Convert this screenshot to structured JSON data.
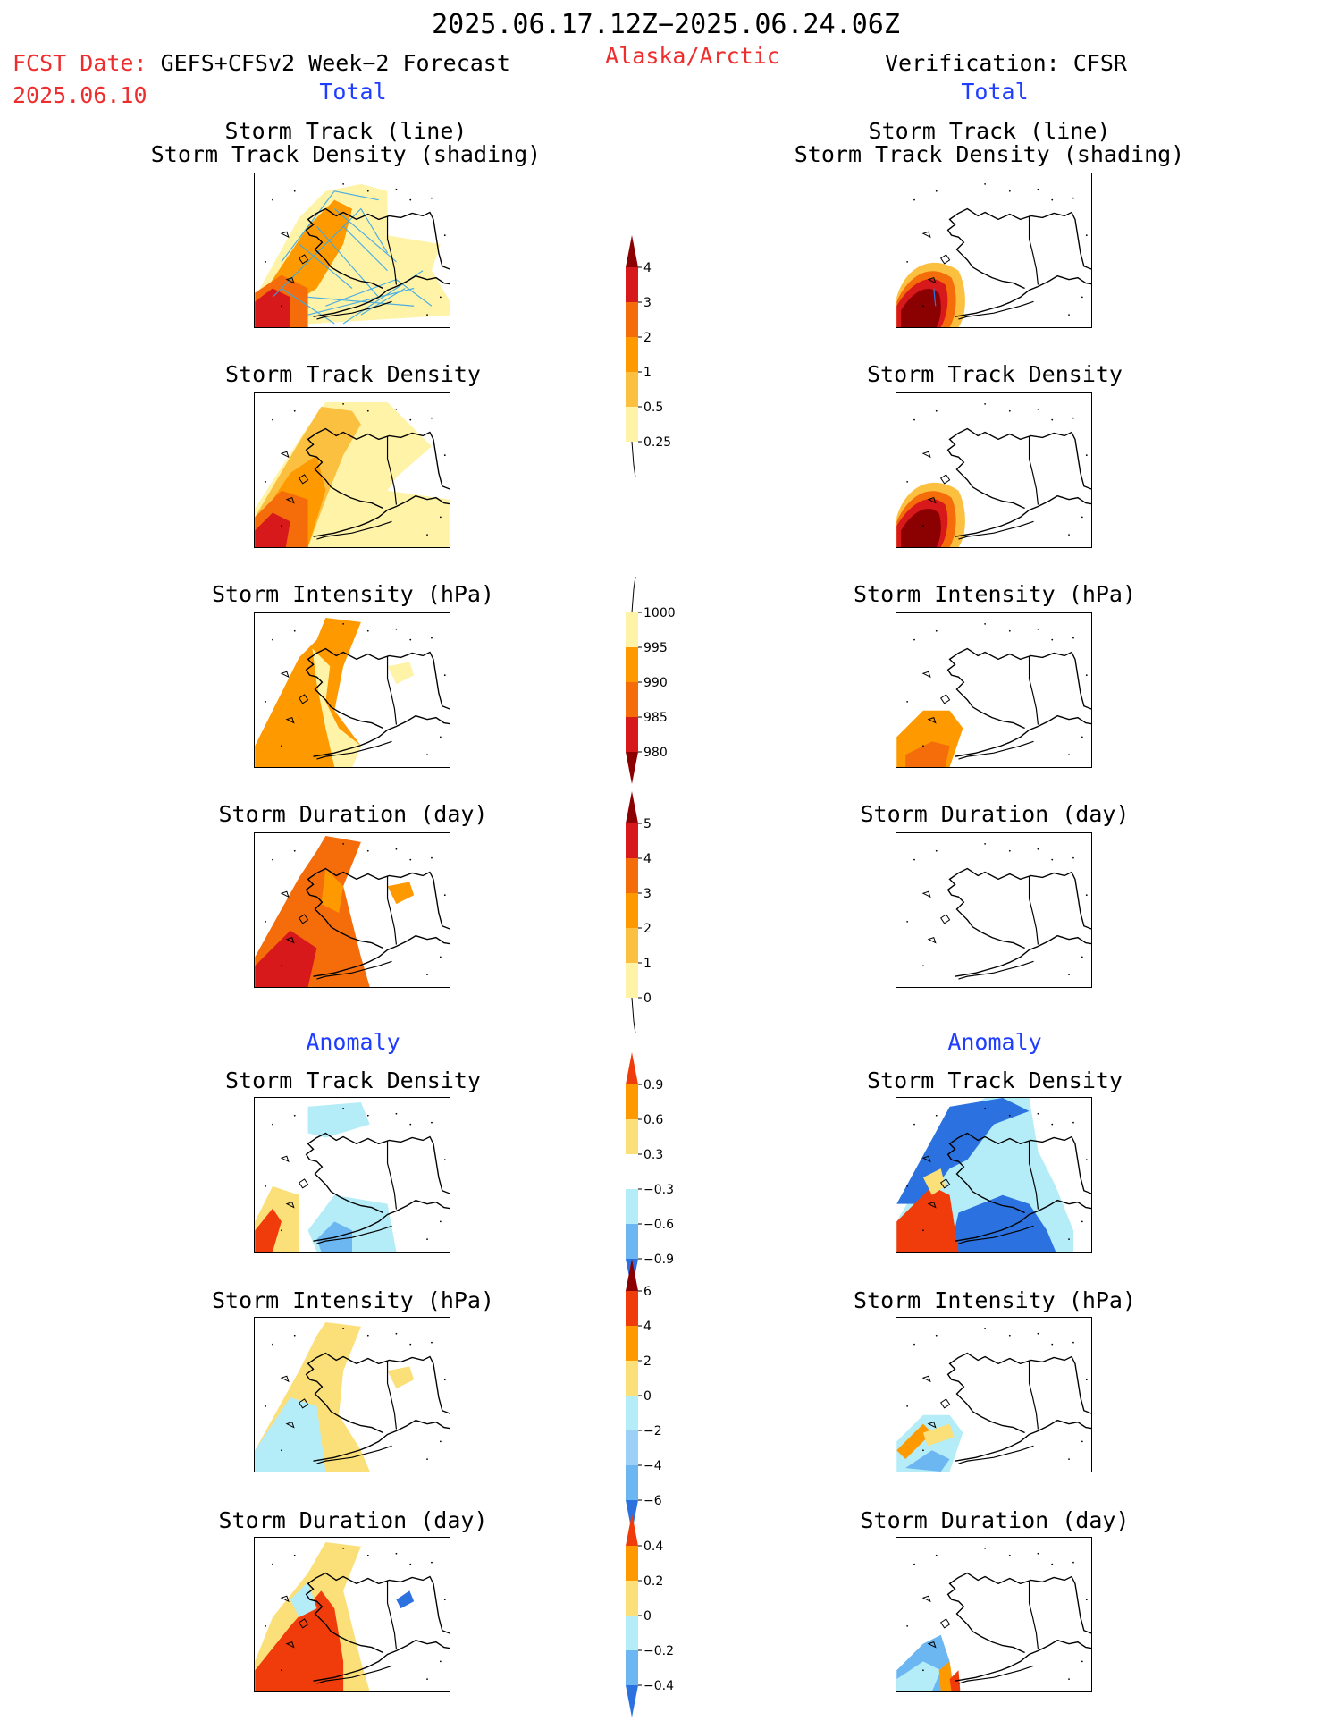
{
  "header": {
    "period": "2025.06.17.12Z−2025.06.24.06Z",
    "fcst_label": "FCST Date:",
    "fcst_product": "GEFS+CFSv2 Week−2 Forecast",
    "fcst_date": "2025.06.10",
    "region": "Alaska/Arctic",
    "verification": "Verification: CFSR"
  },
  "sections": {
    "total_left": "Total",
    "total_right": "Total",
    "anomaly_left": "Anomaly",
    "anomaly_right": "Anomaly"
  },
  "panel_titles": {
    "track_line": "Storm Track (line)",
    "track_shading": "Storm Track Density (shading)",
    "density": "Storm Track Density",
    "intensity": "Storm Intensity (hPa)",
    "duration": "Storm Duration (day)"
  },
  "colorbars": {
    "density_total": {
      "labels": [
        "4",
        "3",
        "2",
        "1",
        "0.5",
        "0.25"
      ],
      "colors": [
        "#8b0000",
        "#d7191c",
        "#f46d0a",
        "#fe9a00",
        "#fcc040",
        "#fff3a8"
      ]
    },
    "intensity_total": {
      "labels": [
        "1000",
        "995",
        "990",
        "985",
        "980"
      ],
      "colors": [
        "#fff3a8",
        "#fe9a00",
        "#f46d0a",
        "#d7191c",
        "#8b0000"
      ]
    },
    "duration_total": {
      "labels": [
        "5",
        "4",
        "3",
        "2",
        "1",
        "0"
      ],
      "colors": [
        "#8b0000",
        "#d7191c",
        "#f46d0a",
        "#fe9a00",
        "#fcc040",
        "#fff3a8"
      ]
    },
    "density_anom": {
      "labels": [
        "0.9",
        "0.6",
        "0.3",
        "−0.3",
        "−0.6",
        "−0.9"
      ],
      "colors": [
        "#f03c0a",
        "#fe9a00",
        "#fbe07a",
        "#ffffff",
        "#b4ecf7",
        "#6cb6f2",
        "#2b72e0"
      ]
    },
    "intensity_anom": {
      "labels": [
        "6",
        "4",
        "2",
        "0",
        "−2",
        "−4",
        "−6"
      ],
      "colors": [
        "#8b0000",
        "#f03c0a",
        "#fe9a00",
        "#fbe07a",
        "#b4ecf7",
        "#9cd0f7",
        "#6cb6f2",
        "#2b72e0"
      ]
    },
    "duration_anom": {
      "labels": [
        "0.4",
        "0.2",
        "0",
        "−0.2",
        "−0.4"
      ],
      "colors": [
        "#f03c0a",
        "#fe9a00",
        "#fbe07a",
        "#b4ecf7",
        "#6cb6f2",
        "#2b72e0"
      ]
    }
  }
}
